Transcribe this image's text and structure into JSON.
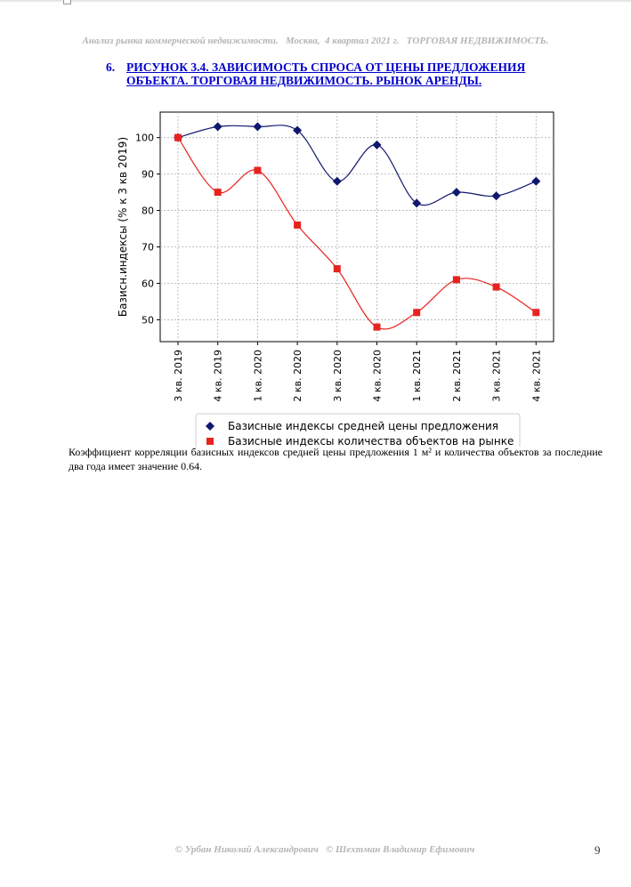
{
  "header": {
    "text": "Анализ рынка коммерческой недвижимости.   Москва,  4 квартал 2021 г.   ТОРГОВАЯ НЕДВИЖИМОСТЬ."
  },
  "figure": {
    "number": "6.",
    "title": "РИСУНОК 3.4. ЗАВИСИМОСТЬ СПРОСА ОТ ЦЕНЫ ПРЕДЛОЖЕНИЯ ОБЪЕКТА.  ТОРГОВАЯ НЕДВИЖИМОСТЬ. РЫНОК АРЕНДЫ."
  },
  "chart_data": {
    "type": "line",
    "categories": [
      "3 кв. 2019",
      "4 кв. 2019",
      "1 кв. 2020",
      "2 кв. 2020",
      "3 кв. 2020",
      "4 кв. 2020",
      "1 кв. 2021",
      "2 кв. 2021",
      "3 кв. 2021",
      "4 кв. 2021"
    ],
    "series": [
      {
        "name": "Базисные индексы средней цены предложения",
        "values": [
          100,
          103,
          103,
          102,
          88,
          98,
          82,
          85,
          84,
          88
        ],
        "color": "#10176e",
        "marker": "diamond"
      },
      {
        "name": "Базисные индексы количества объектов на рынке",
        "values": [
          100,
          85,
          91,
          76,
          64,
          48,
          52,
          61,
          59,
          52
        ],
        "color": "#e8231f",
        "marker": "square"
      }
    ],
    "ylabel": "Базисн.индексы (% к 3 кв 2019)",
    "xlabel": "",
    "yticks": [
      50,
      60,
      70,
      80,
      90,
      100
    ],
    "ylim": [
      44,
      107
    ],
    "grid": true,
    "legend_position": "bottom"
  },
  "paragraph": {
    "text": "Коэффициент корреляции базисных индексов средней цены предложения 1 м² и количества объектов за последние два года имеет значение 0.64."
  },
  "footer": {
    "text": "© Урбан Николай Александрович   © Шехтман Владимир Ефимович"
  },
  "page_number": "9"
}
